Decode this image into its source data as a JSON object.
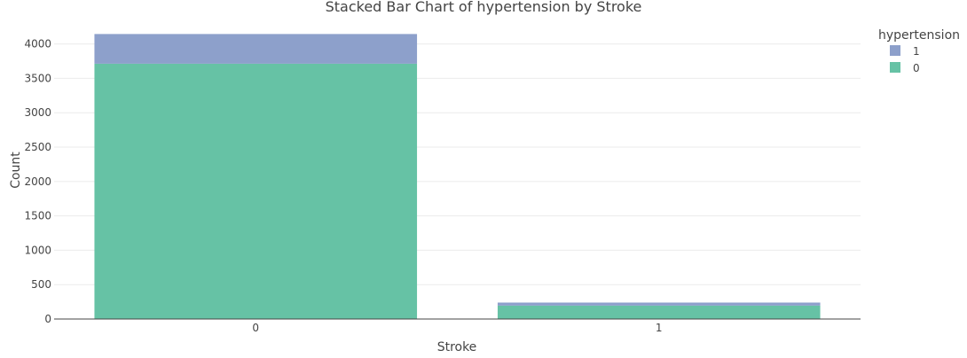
{
  "chart_data": {
    "type": "bar",
    "stacked": true,
    "title": "Stacked Bar Chart of hypertension by Stroke",
    "xlabel": "Stroke",
    "ylabel": "Count",
    "categories": [
      "0",
      "1"
    ],
    "series": [
      {
        "name": "0",
        "color": "#66c2a5",
        "values": [
          3713,
          195
        ]
      },
      {
        "name": "1",
        "color": "#8da0cb",
        "values": [
          432,
          44
        ]
      }
    ],
    "ylim": [
      0,
      4150
    ],
    "yticks": [
      0,
      500,
      1000,
      1500,
      2000,
      2500,
      3000,
      3500,
      4000
    ],
    "grid": true,
    "legend": {
      "title": "hypertension",
      "position": "top-right",
      "order": [
        "1",
        "0"
      ]
    }
  }
}
